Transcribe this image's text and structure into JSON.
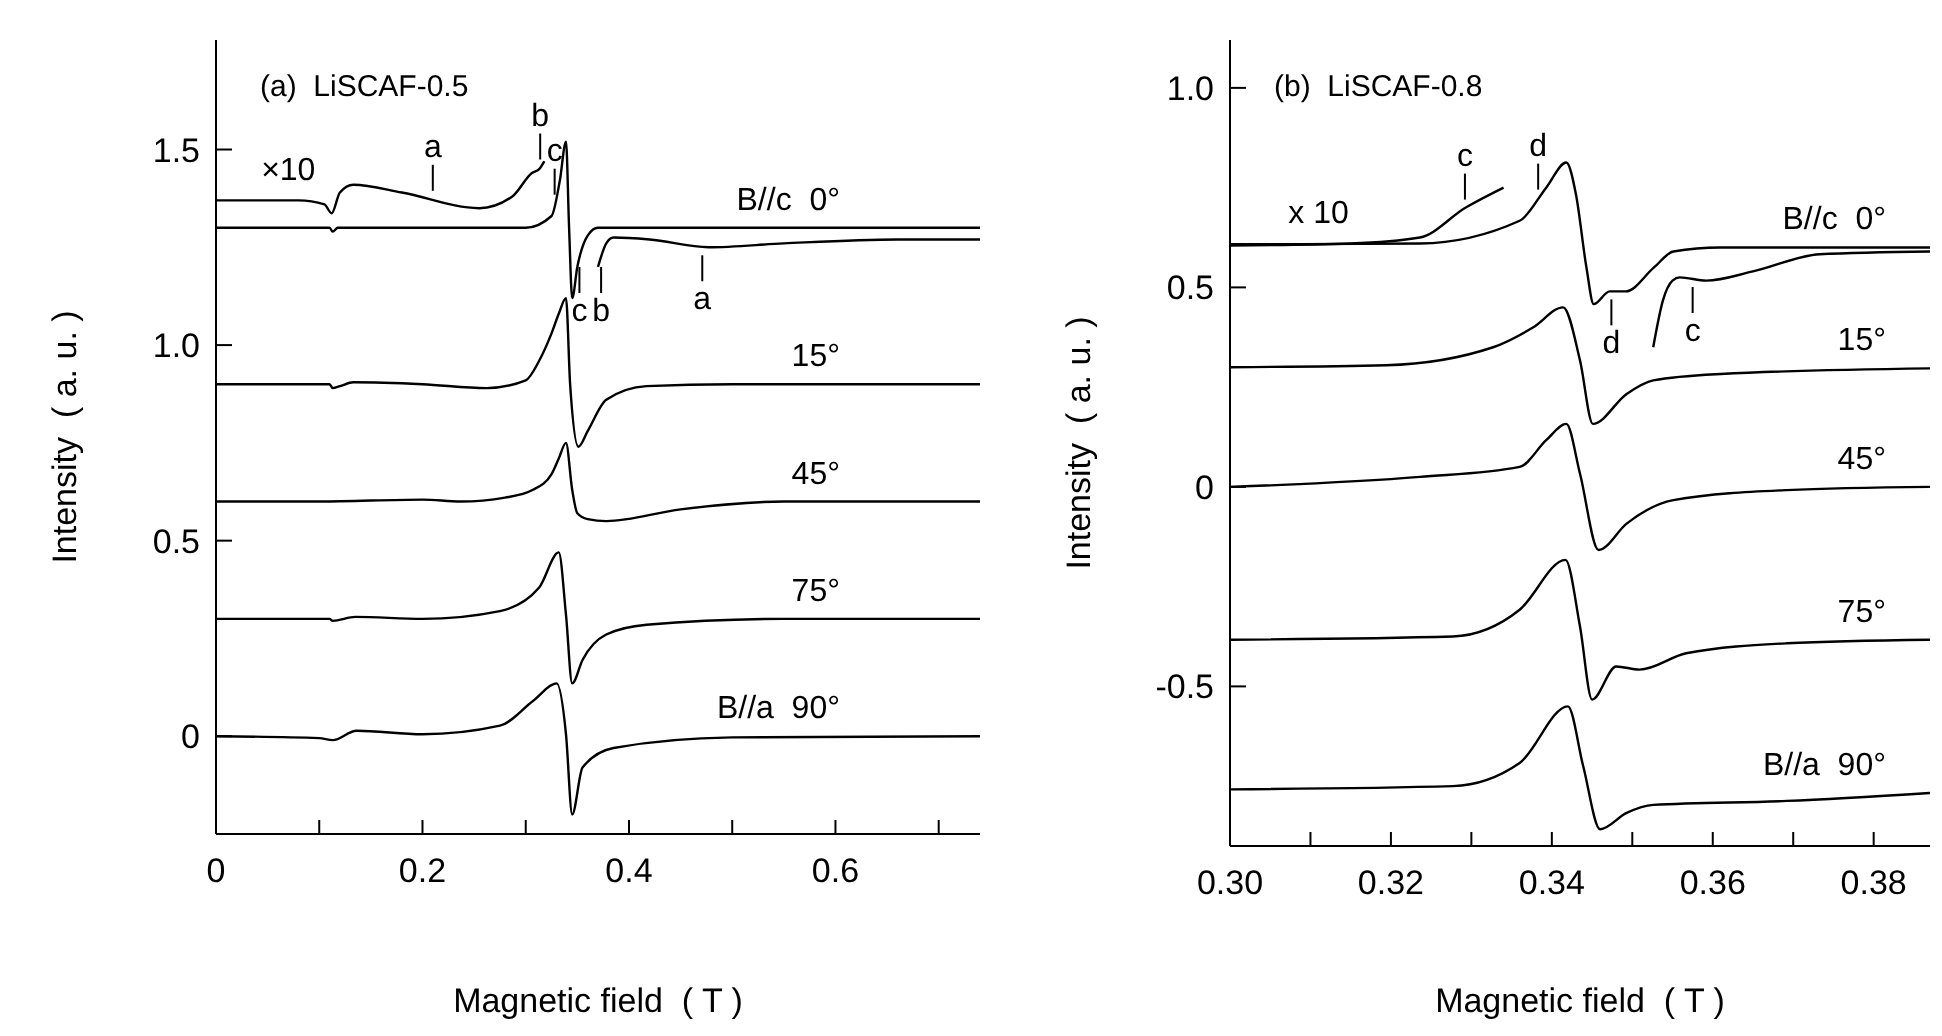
{
  "chart_data": [
    {
      "type": "line",
      "title": "(a)  LiSCAF-0.5",
      "xlabel": "Magnetic field  ( T )",
      "ylabel": "Intensity  ( a. u. )",
      "xlim": [
        0,
        0.74
      ],
      "ylim": [
        -0.25,
        1.78
      ],
      "xticks": [
        0,
        {
          "value": 0.1,
          "label": null
        },
        0.2,
        {
          "value": 0.3,
          "label": null
        },
        0.4,
        {
          "value": 0.5,
          "label": null
        },
        0.6,
        {
          "value": 0.7,
          "label": null
        }
      ],
      "yticks": [
        0,
        0.5,
        {
          "value": 1,
          "label": "1.0"
        },
        1.5
      ],
      "series": [
        {
          "name": "B//c  0°",
          "color": "#000000",
          "x": [
            0,
            0.11,
            0.113,
            0.118,
            0.2,
            0.3,
            0.325,
            0.333,
            0.339,
            0.342,
            0.345,
            0.35,
            0.36,
            0.37,
            0.4,
            0.5,
            0.74
          ],
          "values": [
            1.3,
            1.3,
            1.29,
            1.3,
            1.3,
            1.3,
            1.33,
            1.42,
            1.52,
            1.3,
            1.12,
            1.2,
            1.28,
            1.3,
            1.3,
            1.3,
            1.3
          ]
        },
        {
          "color": "#000000",
          "x": [
            0,
            0.08,
            0.105,
            0.112,
            0.12,
            0.133,
            0.18,
            0.255,
            0.287,
            0.306,
            0.313,
            0.318
          ],
          "values": [
            1.37,
            1.37,
            1.36,
            1.337,
            1.39,
            1.41,
            1.39,
            1.35,
            1.38,
            1.44,
            1.45,
            1.47
          ]
        },
        {
          "color": "#000000",
          "x": [
            0.37,
            0.378,
            0.385,
            0.42,
            0.477,
            0.55,
            0.66,
            0.74
          ],
          "values": [
            1.2,
            1.26,
            1.275,
            1.27,
            1.25,
            1.26,
            1.27,
            1.27
          ]
        },
        {
          "name": "15°",
          "color": "#000000",
          "x": [
            0,
            0.11,
            0.113,
            0.12,
            0.133,
            0.2,
            0.262,
            0.3,
            0.313,
            0.325,
            0.332,
            0.339,
            0.343,
            0.351,
            0.36,
            0.378,
            0.417,
            0.5,
            0.74
          ],
          "values": [
            0.9,
            0.9,
            0.89,
            0.895,
            0.905,
            0.9,
            0.89,
            0.91,
            0.96,
            1.03,
            1.08,
            1.12,
            0.9,
            0.74,
            0.78,
            0.86,
            0.895,
            0.9,
            0.9
          ]
        },
        {
          "name": "45°",
          "color": "#000000",
          "x": [
            0,
            0.1,
            0.2,
            0.237,
            0.28,
            0.307,
            0.325,
            0.332,
            0.339,
            0.345,
            0.35,
            0.36,
            0.378,
            0.45,
            0.55,
            0.74
          ],
          "values": [
            0.6,
            0.6,
            0.605,
            0.6,
            0.61,
            0.63,
            0.67,
            0.71,
            0.75,
            0.63,
            0.57,
            0.555,
            0.55,
            0.58,
            0.6,
            0.6
          ]
        },
        {
          "name": "75°",
          "color": "#000000",
          "x": [
            0,
            0.11,
            0.113,
            0.135,
            0.2,
            0.275,
            0.313,
            0.332,
            0.339,
            0.345,
            0.355,
            0.378,
            0.417,
            0.55,
            0.74
          ],
          "values": [
            0.3,
            0.3,
            0.295,
            0.305,
            0.3,
            0.32,
            0.38,
            0.47,
            0.31,
            0.135,
            0.195,
            0.26,
            0.285,
            0.3,
            0.3
          ]
        },
        {
          "name": "B//a  90°",
          "color": "#000000",
          "x": [
            0,
            0.1,
            0.113,
            0.136,
            0.2,
            0.275,
            0.307,
            0.33,
            0.339,
            0.345,
            0.355,
            0.385,
            0.5,
            0.74
          ],
          "values": [
            0,
            -0.005,
            -0.01,
            0.014,
            0.005,
            0.027,
            0.09,
            0.135,
            0.005,
            -0.2,
            -0.08,
            -0.03,
            -0.003,
            0
          ]
        }
      ],
      "annotations": [
        {
          "text": "×10",
          "x": 0.07,
          "y": 1.37
        },
        {
          "text": "a",
          "x": 0.21,
          "y": 1.374
        },
        {
          "text": "b",
          "x": 0.314,
          "y": 1.454
        },
        {
          "text": "c",
          "x": 0.328,
          "y": 1.364
        },
        {
          "text": "c",
          "x": 0.352,
          "y": 1.22
        },
        {
          "text": "b",
          "x": 0.373,
          "y": 1.22
        },
        {
          "text": "a",
          "x": 0.471,
          "y": 1.25
        }
      ]
    },
    {
      "type": "line",
      "title": "(b)  LiSCAF-0.8",
      "xlabel": "Magnetic field  ( T )",
      "ylabel": "Intensity  ( a. u. )",
      "xlim": [
        0.3,
        0.387
      ],
      "ylim": [
        -0.9,
        1.12
      ],
      "xticks": [
        {
          "value": 0.3,
          "label": "0.30"
        },
        {
          "value": 0.31,
          "label": null
        },
        {
          "value": 0.32,
          "label": "0.32"
        },
        {
          "value": 0.33,
          "label": null
        },
        {
          "value": 0.34,
          "label": "0.34"
        },
        {
          "value": 0.35,
          "label": null
        },
        {
          "value": 0.36,
          "label": "0.36"
        },
        {
          "value": 0.37,
          "label": null
        },
        {
          "value": 0.38,
          "label": "0.38"
        }
      ],
      "yticks": [
        -0.5,
        0,
        0.5,
        {
          "value": 1,
          "label": "1.0"
        }
      ],
      "series": [
        {
          "name": "B//c  0°",
          "color": "#000000",
          "x": [
            0.3,
            0.3236,
            0.336,
            0.3393,
            0.3418,
            0.343,
            0.3443,
            0.3452,
            0.3472,
            0.3492,
            0.3527,
            0.3551,
            0.3609,
            0.387
          ],
          "values": [
            0.608,
            0.61,
            0.667,
            0.75,
            0.813,
            0.733,
            0.55,
            0.458,
            0.49,
            0.49,
            0.55,
            0.59,
            0.6,
            0.6
          ]
        },
        {
          "color": "#000000",
          "x": [
            0.3,
            0.315,
            0.3236,
            0.3293,
            0.334
          ],
          "values": [
            0.605,
            0.61,
            0.625,
            0.7,
            0.75
          ]
        },
        {
          "color": "#000000",
          "x": [
            0.3526,
            0.3538,
            0.355,
            0.3559,
            0.3592,
            0.365,
            0.3733,
            0.387
          ],
          "values": [
            0.35,
            0.467,
            0.517,
            0.525,
            0.517,
            0.54,
            0.583,
            0.59
          ]
        },
        {
          "name": "15°",
          "color": "#000000",
          "x": [
            0.3,
            0.3194,
            0.3327,
            0.3377,
            0.3414,
            0.3435,
            0.3451,
            0.3493,
            0.3526,
            0.361,
            0.387
          ],
          "values": [
            0.3,
            0.305,
            0.35,
            0.4,
            0.45,
            0.317,
            0.158,
            0.233,
            0.267,
            0.283,
            0.297
          ]
        },
        {
          "name": "45°",
          "color": "#000000",
          "x": [
            0.3,
            0.3236,
            0.336,
            0.3393,
            0.3418,
            0.3435,
            0.3458,
            0.3493,
            0.3551,
            0.3692,
            0.387
          ],
          "values": [
            0,
            0.025,
            0.05,
            0.117,
            0.158,
            0.033,
            -0.158,
            -0.092,
            -0.033,
            -0.008,
            0
          ]
        },
        {
          "name": "75°",
          "color": "#000000",
          "x": [
            0.3,
            0.3277,
            0.336,
            0.3417,
            0.3435,
            0.345,
            0.348,
            0.3509,
            0.3567,
            0.3692,
            0.387
          ],
          "values": [
            -0.383,
            -0.375,
            -0.308,
            -0.183,
            -0.35,
            -0.533,
            -0.45,
            -0.458,
            -0.417,
            -0.392,
            -0.383
          ]
        },
        {
          "name": "B//a  90°",
          "color": "#000000",
          "x": [
            0.3,
            0.3277,
            0.336,
            0.342,
            0.3439,
            0.346,
            0.3493,
            0.3526,
            0.3692,
            0.387
          ],
          "values": [
            -0.758,
            -0.75,
            -0.692,
            -0.55,
            -0.7,
            -0.858,
            -0.817,
            -0.797,
            -0.787,
            -0.767
          ]
        }
      ],
      "annotations": [
        {
          "text": "x 10",
          "x": 0.311,
          "y": 0.61
        },
        {
          "text": "c",
          "x": 0.3292,
          "y": 0.7
        },
        {
          "text": "d",
          "x": 0.3383,
          "y": 0.725
        },
        {
          "text": "d",
          "x": 0.3474,
          "y": 0.49
        },
        {
          "text": "c",
          "x": 0.3575,
          "y": 0.521
        }
      ]
    }
  ]
}
